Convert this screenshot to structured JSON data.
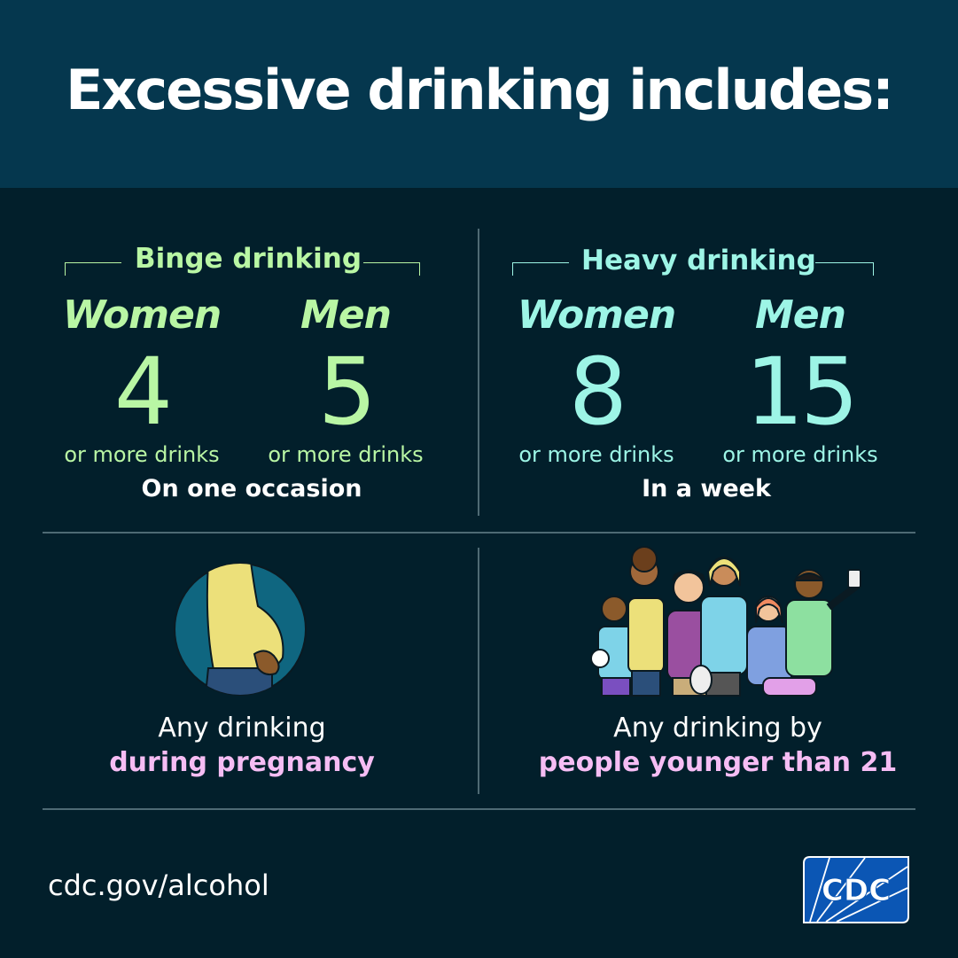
{
  "header": {
    "title": "Excessive drinking includes:"
  },
  "binge": {
    "title": "Binge drinking",
    "women_label": "Women",
    "men_label": "Men",
    "women_value": "4",
    "men_value": "5",
    "women_unit": "or more drinks",
    "men_unit": "or more drinks",
    "period": "On one occasion"
  },
  "heavy": {
    "title": "Heavy drinking",
    "women_label": "Women",
    "men_label": "Men",
    "women_value": "8",
    "men_value": "15",
    "women_unit": "or more drinks",
    "men_unit": "or more drinks",
    "period": "In a week"
  },
  "pregnancy": {
    "line1": "Any drinking",
    "line2": "during pregnancy"
  },
  "underage": {
    "line1": "Any drinking by",
    "line2": "people younger than 21"
  },
  "footer": {
    "url": "cdc.gov/alcohol",
    "logo_text": "CDC"
  },
  "colors": {
    "background": "#021f2b",
    "header": "#05374e",
    "binge": "#b9f6a4",
    "heavy": "#9df5e6",
    "highlight": "#f6bdf4",
    "cdc_blue": "#0b56b4"
  }
}
